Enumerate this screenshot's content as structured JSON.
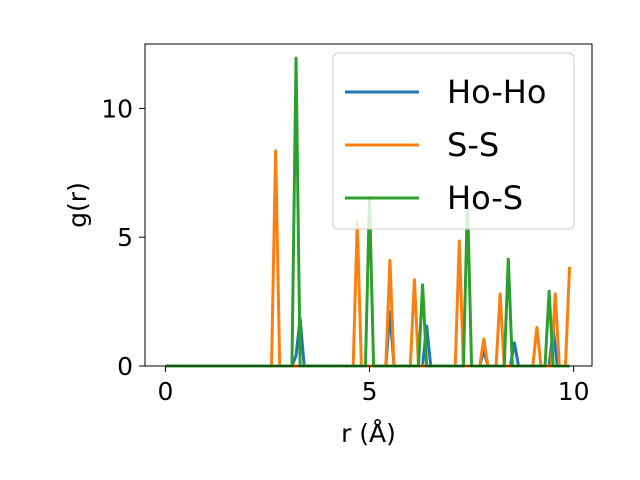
{
  "chart_data": {
    "type": "line",
    "xlabel": "r (Å)",
    "ylabel": "g(r)",
    "xlim": [
      -0.5,
      10.45
    ],
    "ylim": [
      0,
      12.5
    ],
    "xticks": [
      0,
      5,
      10
    ],
    "yticks": [
      0,
      5,
      10
    ],
    "legend_position": "top-right",
    "series": [
      {
        "name": "Ho-Ho",
        "color": "#1f77b4",
        "x": [
          0,
          3.1,
          3.2,
          3.3,
          3.4,
          5.4,
          5.5,
          5.6,
          6.3,
          6.4,
          6.5,
          7.7,
          7.8,
          7.9,
          8.45,
          8.55,
          8.65,
          9.4,
          9.5,
          9.6,
          9.9
        ],
        "y": [
          0,
          0,
          0.4,
          1.85,
          0,
          0,
          2.1,
          0,
          0,
          1.55,
          0,
          0,
          0.6,
          0,
          0,
          0.9,
          0,
          0,
          1.45,
          0,
          0
        ]
      },
      {
        "name": "S-S",
        "color": "#ff7f0e",
        "x": [
          0,
          2.6,
          2.7,
          2.8,
          4.6,
          4.7,
          4.8,
          5.4,
          5.5,
          5.6,
          6.0,
          6.1,
          6.2,
          7.1,
          7.2,
          7.3,
          7.7,
          7.8,
          7.9,
          8.1,
          8.2,
          8.3,
          9.0,
          9.1,
          9.2,
          9.45,
          9.55,
          9.65,
          9.8,
          9.9
        ],
        "y": [
          0,
          0,
          8.35,
          0,
          0,
          5.6,
          0,
          0,
          4.1,
          0,
          0,
          3.35,
          0,
          0,
          4.85,
          0,
          0,
          1.05,
          0,
          0,
          2.8,
          0,
          0,
          1.5,
          0,
          0,
          2.8,
          0,
          0,
          3.85
        ]
      },
      {
        "name": "Ho-S",
        "color": "#2ca02c",
        "x": [
          0,
          3.1,
          3.2,
          3.3,
          4.9,
          5.0,
          5.1,
          6.2,
          6.3,
          6.4,
          7.3,
          7.4,
          7.5,
          8.3,
          8.4,
          8.5,
          9.3,
          9.4,
          9.5,
          9.9
        ],
        "y": [
          0,
          0,
          11.95,
          0,
          0,
          6.55,
          0,
          0,
          3.15,
          0,
          0,
          6.4,
          0,
          0,
          4.15,
          0,
          0,
          2.9,
          0,
          0
        ]
      }
    ]
  }
}
